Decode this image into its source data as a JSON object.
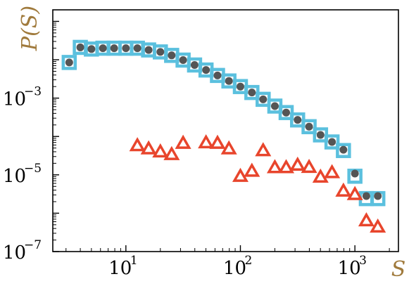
{
  "chart_data": {
    "type": "scatter",
    "title": "",
    "xlabel": "S",
    "ylabel": "P(S)",
    "xscale": "log",
    "yscale": "log",
    "xlim": [
      2.3,
      2400
    ],
    "ylim": [
      1e-07,
      0.2
    ],
    "grid": false,
    "legend": "none",
    "axis_label_color": "#A07A3C",
    "x_ticks": [
      {
        "base": "10",
        "exp": "1",
        "value": 10
      },
      {
        "base": "10",
        "exp": "2",
        "value": 100
      },
      {
        "base": "10",
        "exp": "3",
        "value": 1000
      }
    ],
    "y_ticks": [
      {
        "base": "10",
        "exp": "−3",
        "value": 0.001
      },
      {
        "base": "10",
        "exp": "−5",
        "value": 1e-05
      },
      {
        "base": "10",
        "exp": "−7",
        "value": 1e-07
      }
    ],
    "series": [
      {
        "marker": "square-outline",
        "color": "#5BC0DE",
        "x": [
          3.2,
          4.0,
          5.0,
          6.3,
          7.9,
          10.0,
          12.6,
          15.8,
          20.0,
          25.1,
          31.6,
          39.8,
          50.1,
          63.1,
          79.4,
          100,
          126,
          158,
          200,
          251,
          316,
          398,
          501,
          631,
          794,
          1000,
          1259,
          1585
        ],
        "y": [
          0.0085,
          0.021,
          0.019,
          0.02,
          0.02,
          0.02,
          0.02,
          0.018,
          0.016,
          0.013,
          0.0098,
          0.0073,
          0.0054,
          0.0039,
          0.0028,
          0.002,
          0.0014,
          0.00093,
          0.00062,
          0.00042,
          0.00027,
          0.00018,
          0.00011,
          7.2e-05,
          4.3e-05,
          9.2e-06,
          2.4e-06,
          2.4e-06
        ]
      },
      {
        "marker": "circle",
        "color": "#555555",
        "x": [
          3.2,
          4.0,
          5.0,
          6.3,
          7.9,
          10.0,
          12.6,
          15.8,
          20.0,
          25.1,
          31.6,
          39.8,
          50.1,
          63.1,
          79.4,
          100,
          126,
          158,
          200,
          251,
          316,
          398,
          501,
          631,
          794,
          1000,
          1259,
          1585
        ],
        "y": [
          0.0085,
          0.021,
          0.019,
          0.02,
          0.02,
          0.02,
          0.02,
          0.018,
          0.016,
          0.013,
          0.0098,
          0.0073,
          0.0054,
          0.0039,
          0.0028,
          0.002,
          0.0014,
          0.00093,
          0.00062,
          0.00042,
          0.00027,
          0.00018,
          0.00011,
          7.2e-05,
          4.5e-05,
          1.08e-05,
          2.8e-06,
          2.8e-06
        ]
      },
      {
        "marker": "triangle-outline",
        "color": "#E8452C",
        "x": [
          12.6,
          15.8,
          20.0,
          25.1,
          31.6,
          50.1,
          63.1,
          79.4,
          100,
          126,
          158,
          200,
          251,
          316,
          398,
          501,
          631,
          794,
          1000,
          1259,
          1585
        ],
        "y": [
          5.8e-05,
          4.8e-05,
          4e-05,
          3.4e-05,
          6.7e-05,
          6.9e-05,
          6.7e-05,
          4.8e-05,
          9.2e-06,
          1.25e-05,
          4.3e-05,
          1.55e-05,
          1.55e-05,
          1.8e-05,
          1.58e-05,
          8.8e-06,
          1.15e-05,
          3.8e-06,
          3.1e-06,
          6.4e-07,
          4.4e-07
        ]
      }
    ]
  }
}
